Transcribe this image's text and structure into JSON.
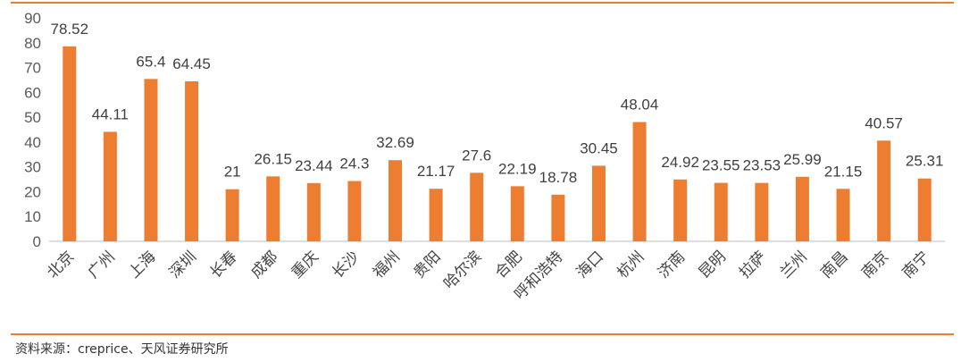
{
  "colors": {
    "bar": "#ED7D31",
    "rule": "#ED7D31",
    "axis": "#BFBFBF",
    "tick_text": "#5B5B5B",
    "label_text": "#3F3F3F"
  },
  "footer": {
    "source": "资料来源：creprice、天风证券研究所"
  },
  "chart_data": {
    "type": "bar",
    "title": "",
    "xlabel": "",
    "ylabel": "",
    "ylim": [
      0,
      90
    ],
    "yticks": [
      0,
      10,
      20,
      30,
      40,
      50,
      60,
      70,
      80,
      90
    ],
    "grid": false,
    "legend": "none",
    "categories": [
      "北京",
      "广州",
      "上海",
      "深圳",
      "长春",
      "成都",
      "重庆",
      "长沙",
      "福州",
      "贵阳",
      "哈尔滨",
      "合肥",
      "呼和浩特",
      "海口",
      "杭州",
      "济南",
      "昆明",
      "拉萨",
      "兰州",
      "南昌",
      "南京",
      "南宁"
    ],
    "values": [
      78.52,
      44.11,
      65.4,
      64.45,
      21,
      26.15,
      23.44,
      24.3,
      32.69,
      21.17,
      27.6,
      22.19,
      18.78,
      30.45,
      48.04,
      24.92,
      23.55,
      23.53,
      25.99,
      21.15,
      40.57,
      25.31
    ],
    "data_labels": [
      "78.52",
      "44.11",
      "65.4",
      "64.45",
      "21",
      "26.15",
      "23.44",
      "24.3",
      "32.69",
      "21.17",
      "27.6",
      "22.19",
      "18.78",
      "30.45",
      "48.04",
      "24.92",
      "23.55",
      "23.53",
      "25.99",
      "21.15",
      "40.57",
      "25.31"
    ]
  }
}
